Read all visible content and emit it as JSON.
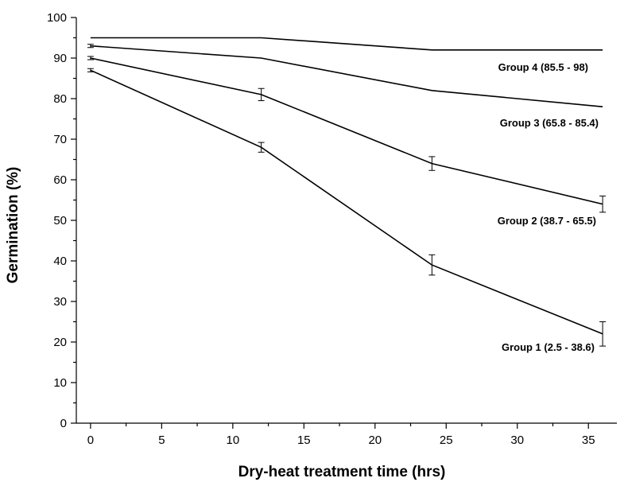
{
  "chart_data": {
    "type": "line",
    "title": "",
    "xlabel": "Dry-heat treatment time (hrs)",
    "ylabel": "Germination (%)",
    "xlim": [
      -1,
      37
    ],
    "ylim": [
      0,
      100
    ],
    "xticks": [
      0,
      5,
      10,
      15,
      20,
      25,
      30,
      35
    ],
    "yticks": [
      0,
      10,
      20,
      30,
      40,
      50,
      60,
      70,
      80,
      90,
      100
    ],
    "grid": false,
    "legend": "none",
    "x": [
      0,
      12,
      24,
      36
    ],
    "series": [
      {
        "name": "Group 1 (2.5 - 38.6)",
        "values": [
          87,
          68,
          39,
          22
        ],
        "errors": [
          0.4,
          1.2,
          2.5,
          3.0
        ]
      },
      {
        "name": "Group 2 (38.7 - 65.5)",
        "values": [
          90,
          81,
          64,
          54
        ],
        "errors": [
          0.4,
          1.5,
          1.7,
          2.0
        ]
      },
      {
        "name": "Group 3 (65.8 - 85.4)",
        "values": [
          93,
          90,
          82,
          78
        ],
        "errors": [
          0.4,
          0,
          0,
          0
        ]
      },
      {
        "name": "Group 4 (85.5 - 98)",
        "values": [
          95,
          95,
          92,
          92
        ],
        "errors": [
          0,
          0,
          0,
          0
        ]
      }
    ]
  }
}
